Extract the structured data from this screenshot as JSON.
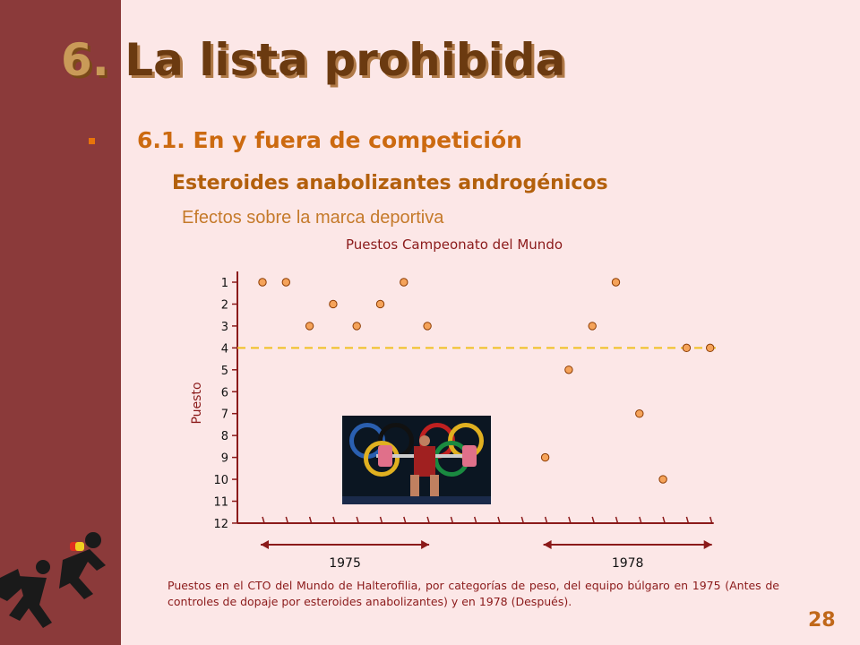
{
  "slide": {
    "title_num": "6.",
    "title_text": "La lista prohibida",
    "heading": "6.1. En y fuera de competición",
    "subheading": "Esteroides anabolizantes androgénicos",
    "subsubheading": "Efectos sobre la marca deportiva",
    "caption": "Puestos en el CTO del Mundo de Halterofilia, por categorías de peso, del equipo búlgaro en 1975 (Antes de controles de dopaje por esteroides anabolizantes) y en 1978 (Después).",
    "page_number": "28"
  },
  "chart_data": {
    "type": "scatter",
    "title": "Puestos Campeonato del Mundo",
    "ylabel": "Puesto",
    "ylim": [
      1,
      12
    ],
    "y_inverted": true,
    "yticks": [
      "1",
      "2",
      "3",
      "4",
      "5",
      "6",
      "7",
      "8",
      "9",
      "10",
      "11",
      "12"
    ],
    "groups": [
      "1975",
      "1978"
    ],
    "series": [
      {
        "group": "1975",
        "points": [
          {
            "x": 1,
            "y": 1
          },
          {
            "x": 2,
            "y": 1
          },
          {
            "x": 3,
            "y": 3
          },
          {
            "x": 4,
            "y": 2
          },
          {
            "x": 5,
            "y": 3
          },
          {
            "x": 6,
            "y": 2
          },
          {
            "x": 7,
            "y": 1
          },
          {
            "x": 8,
            "y": 3
          }
        ]
      },
      {
        "group": "1978",
        "points": [
          {
            "x": 13,
            "y": 9
          },
          {
            "x": 14,
            "y": 5
          },
          {
            "x": 15,
            "y": 3
          },
          {
            "x": 16,
            "y": 1
          },
          {
            "x": 17,
            "y": 7
          },
          {
            "x": 18,
            "y": 10
          },
          {
            "x": 19,
            "y": 4
          },
          {
            "x": 20,
            "y": 4
          }
        ]
      }
    ],
    "reference_line": 4,
    "colors": {
      "marker": "#f5a35a",
      "marker_edge": "#8b3a00",
      "axis": "#8b1a1a",
      "reference": "#f0c020",
      "title": "#8b1a1a"
    }
  }
}
